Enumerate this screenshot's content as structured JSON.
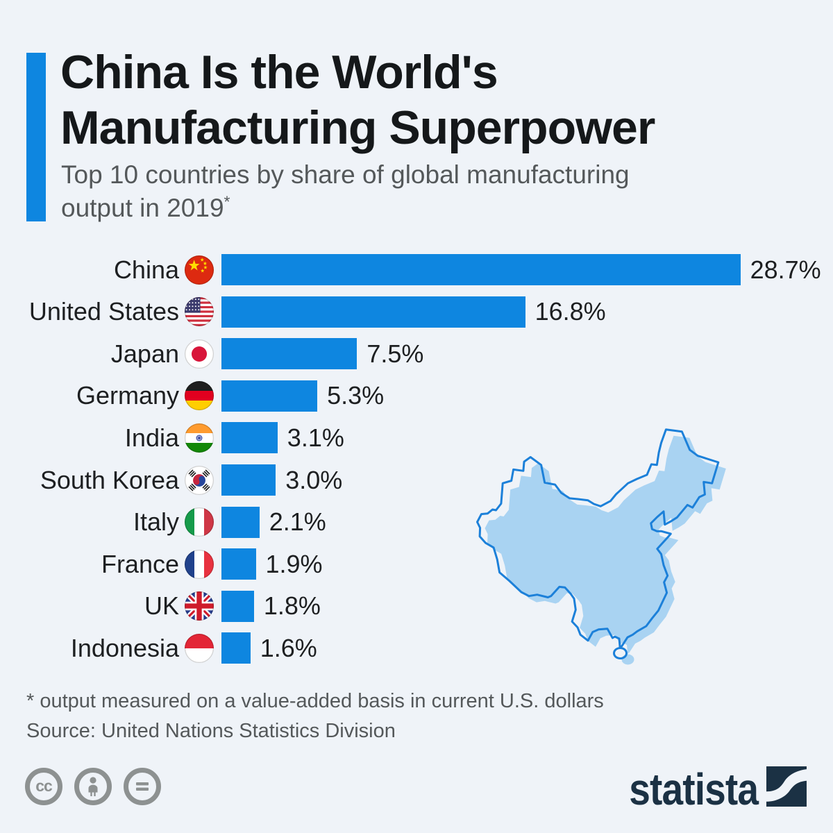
{
  "page": {
    "background": "#eff3f8",
    "accent_blue": "#0e86e0"
  },
  "header": {
    "title_line1": "China Is the World's",
    "title_line2": "Manufacturing Superpower",
    "subtitle_line1": "Top 10 countries by share of global manufacturing",
    "subtitle_line2": "output in 2019",
    "subtitle_asterisk": "*"
  },
  "chart_data": {
    "type": "bar",
    "orientation": "horizontal",
    "title": "China Is the World's Manufacturing Superpower",
    "subtitle": "Top 10 countries by share of global manufacturing output in 2019*",
    "categories": [
      "China",
      "United States",
      "Japan",
      "Germany",
      "India",
      "South Korea",
      "Italy",
      "France",
      "UK",
      "Indonesia"
    ],
    "values": [
      28.7,
      16.8,
      7.5,
      5.3,
      3.1,
      3.0,
      2.1,
      1.9,
      1.8,
      1.6
    ],
    "value_labels": [
      "28.7%",
      "16.8%",
      "7.5%",
      "5.3%",
      "3.1%",
      "3.0%",
      "2.1%",
      "1.9%",
      "1.8%",
      "1.6%"
    ],
    "value_suffix": "%",
    "xlim": [
      0,
      30
    ],
    "grid": false,
    "legend": "none",
    "bar_color": "#0e86e0"
  },
  "flags": [
    "flag-china-icon",
    "flag-united-states-icon",
    "flag-japan-icon",
    "flag-germany-icon",
    "flag-india-icon",
    "flag-south-korea-icon",
    "flag-italy-icon",
    "flag-france-icon",
    "flag-uk-icon",
    "flag-indonesia-icon"
  ],
  "map": {
    "label": "china-map",
    "fill": "#a9d3f2",
    "outline": "#1c80d9"
  },
  "footer": {
    "footnote": "* output measured on a value-added basis in current U.S. dollars",
    "source": "Source: United Nations Statistics Division"
  },
  "branding": {
    "logo_text": "statista",
    "logo_color": "#1b3144",
    "cc_label": "cc",
    "license_icons": [
      "cc-license-icon",
      "attribution-icon",
      "no-derivatives-icon"
    ]
  }
}
